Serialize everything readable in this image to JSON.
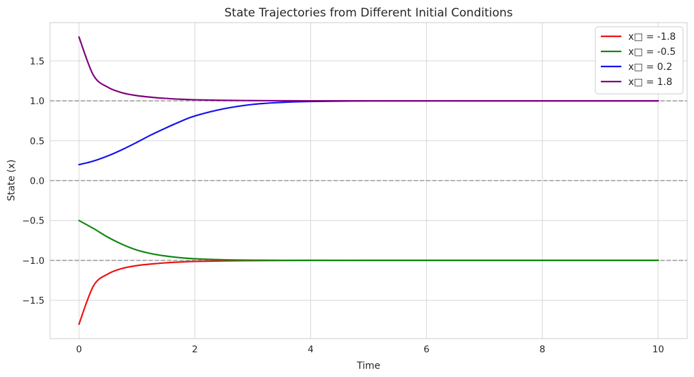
{
  "chart_data": {
    "type": "line",
    "title": "State Trajectories from Different Initial Conditions",
    "xlabel": "Time",
    "ylabel": "State (x)",
    "xlim": [
      -0.5,
      10.5
    ],
    "ylim": [
      -1.98,
      1.98
    ],
    "grid": true,
    "legend_position": "top-right",
    "x_ticks": [
      0,
      2,
      4,
      6,
      8,
      10
    ],
    "x_tick_labels": [
      "0",
      "2",
      "4",
      "6",
      "8",
      "10"
    ],
    "y_ticks": [
      -1.5,
      -1.0,
      -0.5,
      0.0,
      0.5,
      1.0,
      1.5
    ],
    "y_tick_labels": [
      "−1.5",
      "−1.0",
      "−0.5",
      "0.0",
      "0.5",
      "1.0",
      "1.5"
    ],
    "reference_lines": [
      1.0,
      0.0,
      -1.0
    ],
    "reference_color": "#999999",
    "x": [
      0,
      0.25,
      0.5,
      0.75,
      1,
      1.25,
      1.5,
      1.75,
      2,
      2.5,
      3,
      3.5,
      4,
      5,
      6,
      7,
      8,
      9,
      10
    ],
    "series": [
      {
        "name": "x₠ = -1.8",
        "legend": "x□ = -1.8",
        "color": "#ee1111",
        "values": [
          -1.8,
          -1.32,
          -1.17,
          -1.1,
          -1.065,
          -1.045,
          -1.03,
          -1.02,
          -1.013,
          -1.006,
          -1.003,
          -1.001,
          -1.0,
          -1.0,
          -1.0,
          -1.0,
          -1.0,
          -1.0,
          -1.0
        ]
      },
      {
        "name": "x₠ = -0.5",
        "legend": "x□ = -0.5",
        "color": "#118811",
        "values": [
          -0.5,
          -0.6,
          -0.71,
          -0.8,
          -0.87,
          -0.915,
          -0.945,
          -0.966,
          -0.979,
          -0.992,
          -0.997,
          -0.999,
          -1.0,
          -1.0,
          -1.0,
          -1.0,
          -1.0,
          -1.0,
          -1.0
        ]
      },
      {
        "name": "x₠ = 0.2",
        "legend": "x□ = 0.2",
        "color": "#1111ee",
        "values": [
          0.2,
          0.245,
          0.31,
          0.39,
          0.48,
          0.575,
          0.66,
          0.74,
          0.81,
          0.9,
          0.955,
          0.98,
          0.992,
          0.999,
          1.0,
          1.0,
          1.0,
          1.0,
          1.0
        ]
      },
      {
        "name": "x₠ = 1.8",
        "legend": "x□ = 1.8",
        "color": "#800080",
        "values": [
          1.8,
          1.32,
          1.17,
          1.1,
          1.065,
          1.045,
          1.03,
          1.02,
          1.013,
          1.006,
          1.003,
          1.001,
          1.0,
          1.0,
          1.0,
          1.0,
          1.0,
          1.0,
          1.0
        ]
      }
    ]
  }
}
